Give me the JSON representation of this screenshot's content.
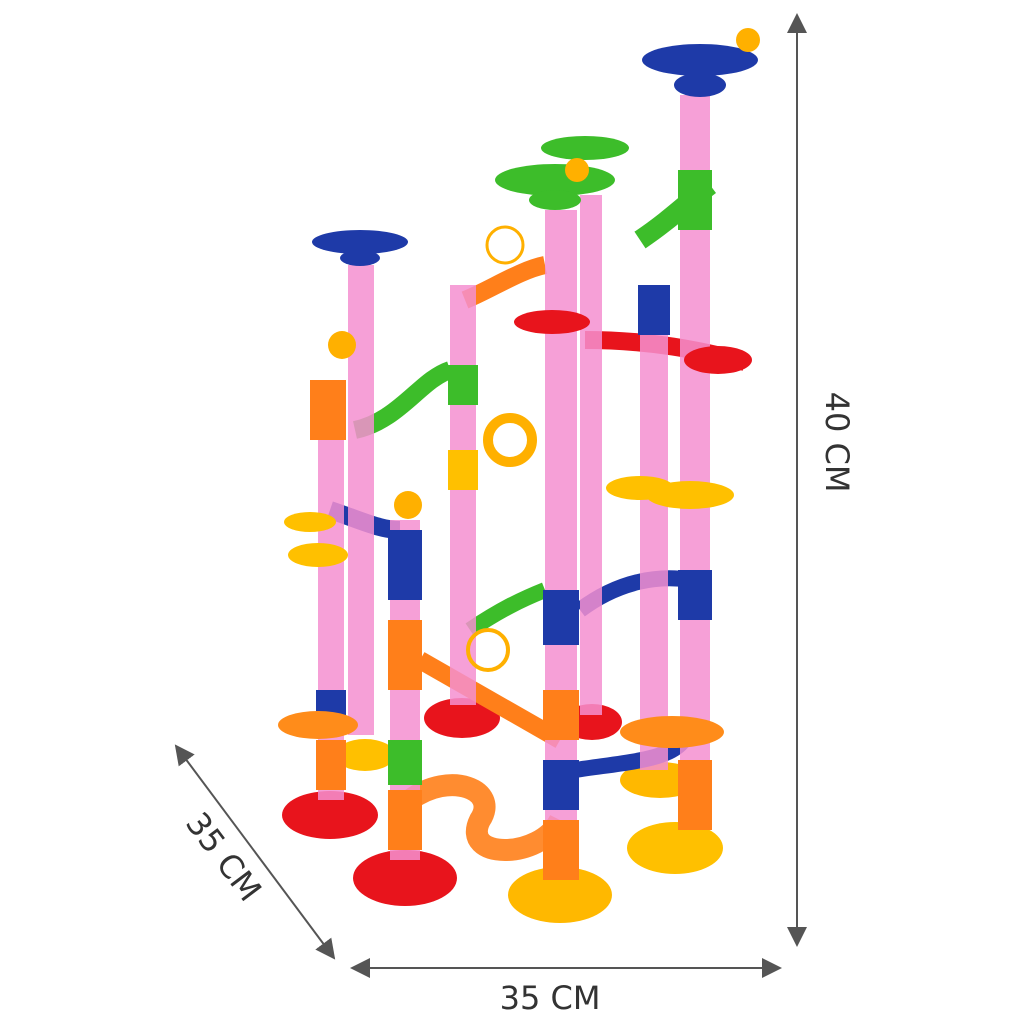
{
  "dimensions": {
    "height": "40 CM",
    "depth": "35 CM",
    "width": "35 CM"
  }
}
